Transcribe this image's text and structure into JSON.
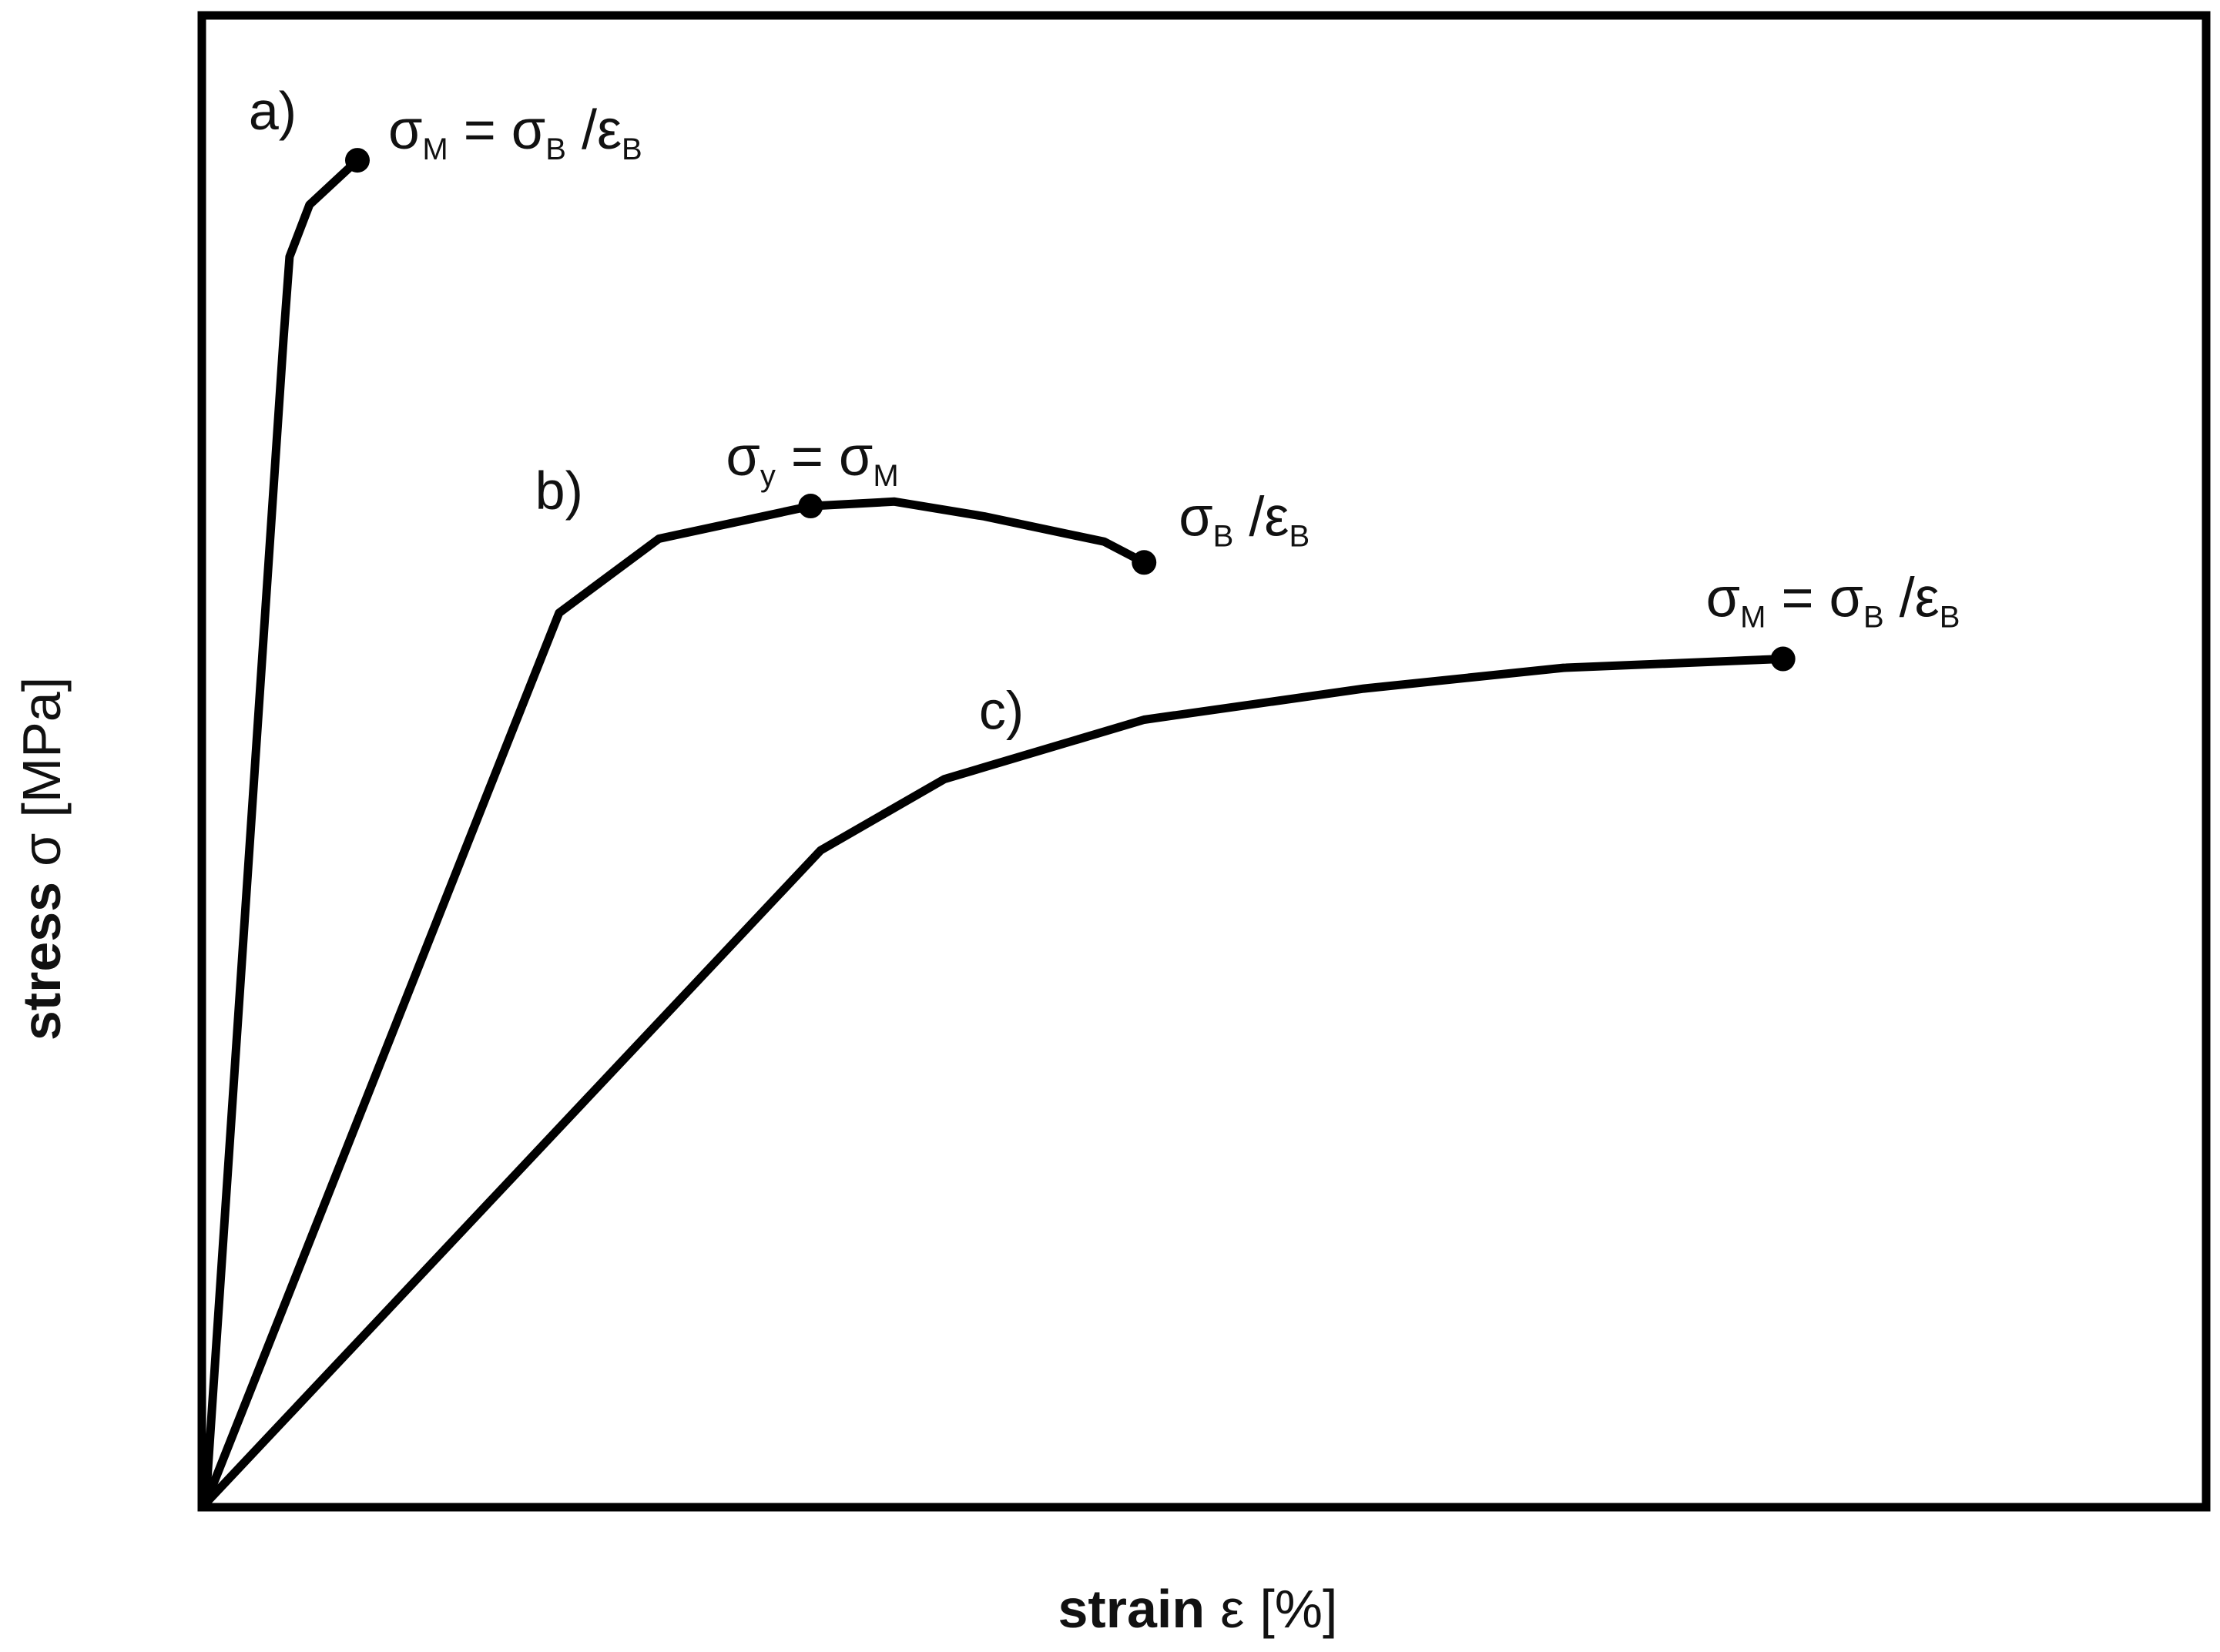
{
  "chart_data": {
    "type": "line",
    "xlabel": "strain",
    "xlabel_symbol": "ε",
    "xlabel_unit": "[%]",
    "ylabel": "stress",
    "ylabel_symbol": "σ",
    "ylabel_unit": "[MPa]",
    "xlim": [
      0,
      100
    ],
    "ylim": [
      0,
      100
    ],
    "grid": false,
    "series": [
      {
        "name": "a)",
        "points": [
          [
            0,
            0
          ],
          [
            3.9,
            78.5
          ],
          [
            4.2,
            84.0
          ],
          [
            5.2,
            87.5
          ],
          [
            7.6,
            90.5
          ]
        ],
        "markers": [
          [
            7.6,
            90.5
          ]
        ],
        "annotations": [
          {
            "at": [
              7.6,
              90.5
            ],
            "parts": [
              [
                "σ",
                ""
              ],
              [
                "M",
                "sub"
              ],
              [
                " = σ",
                ""
              ],
              [
                "B",
                "sub"
              ],
              [
                " /ε",
                ""
              ],
              [
                "B",
                "sub"
              ]
            ]
          }
        ]
      },
      {
        "name": "b)",
        "points": [
          [
            0,
            0
          ],
          [
            17.7,
            60.0
          ],
          [
            22.7,
            65.0
          ],
          [
            30.3,
            67.2
          ],
          [
            34.5,
            67.5
          ],
          [
            39.0,
            66.5
          ],
          [
            45.0,
            64.8
          ],
          [
            47.0,
            63.4
          ]
        ],
        "markers": [
          [
            30.3,
            67.2
          ],
          [
            47.0,
            63.4
          ]
        ],
        "annotations": [
          {
            "at": [
              30.3,
              67.2
            ],
            "parts": [
              [
                "σ",
                ""
              ],
              [
                "y",
                "sub"
              ],
              [
                " = σ",
                ""
              ],
              [
                "M",
                "sub"
              ]
            ]
          },
          {
            "at": [
              47.0,
              63.4
            ],
            "parts": [
              [
                "σ",
                ""
              ],
              [
                "B",
                "sub"
              ],
              [
                " /ε",
                ""
              ],
              [
                "B",
                "sub"
              ]
            ]
          }
        ]
      },
      {
        "name": "c)",
        "points": [
          [
            0,
            0
          ],
          [
            30.8,
            44.0
          ],
          [
            37.0,
            48.8
          ],
          [
            47.0,
            52.8
          ],
          [
            58.0,
            54.9
          ],
          [
            68.0,
            56.3
          ],
          [
            79.0,
            56.9
          ]
        ],
        "markers": [
          [
            79.0,
            56.9
          ]
        ],
        "annotations": [
          {
            "at": [
              79.0,
              56.9
            ],
            "parts": [
              [
                "σ",
                ""
              ],
              [
                "M",
                "sub"
              ],
              [
                " = σ",
                ""
              ],
              [
                "B",
                "sub"
              ],
              [
                " /ε",
                ""
              ],
              [
                "B",
                "sub"
              ]
            ]
          }
        ]
      }
    ]
  }
}
